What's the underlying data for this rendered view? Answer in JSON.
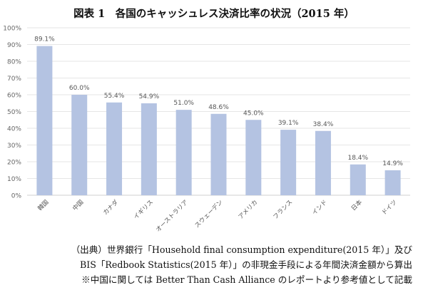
{
  "chart_data": {
    "type": "bar",
    "title": "図表 1　各国のキャッシュレス決済比率の状況（2015 年）",
    "categories": [
      "韓国",
      "中国",
      "カナダ",
      "イギリス",
      "オーストラリア",
      "スウェーデン",
      "アメリカ",
      "フランス",
      "インド",
      "日本",
      "ドイツ"
    ],
    "values": [
      89.1,
      60.0,
      55.4,
      54.9,
      51.0,
      48.6,
      45.0,
      39.1,
      38.4,
      18.4,
      14.9
    ],
    "data_labels": [
      "89.1%",
      "60.0%",
      "55.4%",
      "54.9%",
      "51.0%",
      "48.6%",
      "45.0%",
      "39.1%",
      "38.4%",
      "18.4%",
      "14.9%"
    ],
    "y_ticks": [
      "0%",
      "10%",
      "20%",
      "30%",
      "40%",
      "50%",
      "60%",
      "70%",
      "80%",
      "90%",
      "100%"
    ],
    "ylim": [
      0,
      100
    ],
    "xlabel": "",
    "ylabel": "",
    "grid": true,
    "bar_color": "#b4c3e2"
  },
  "notes": [
    "（出典）世界銀行「Household final consumption expenditure(2015 年）」及び",
    "BIS「Redbook Statistics(2015 年）」の非現金手段による年間決済金額から算出",
    "※中国に関しては Better Than Cash Alliance のレポートより参考値として記載"
  ]
}
